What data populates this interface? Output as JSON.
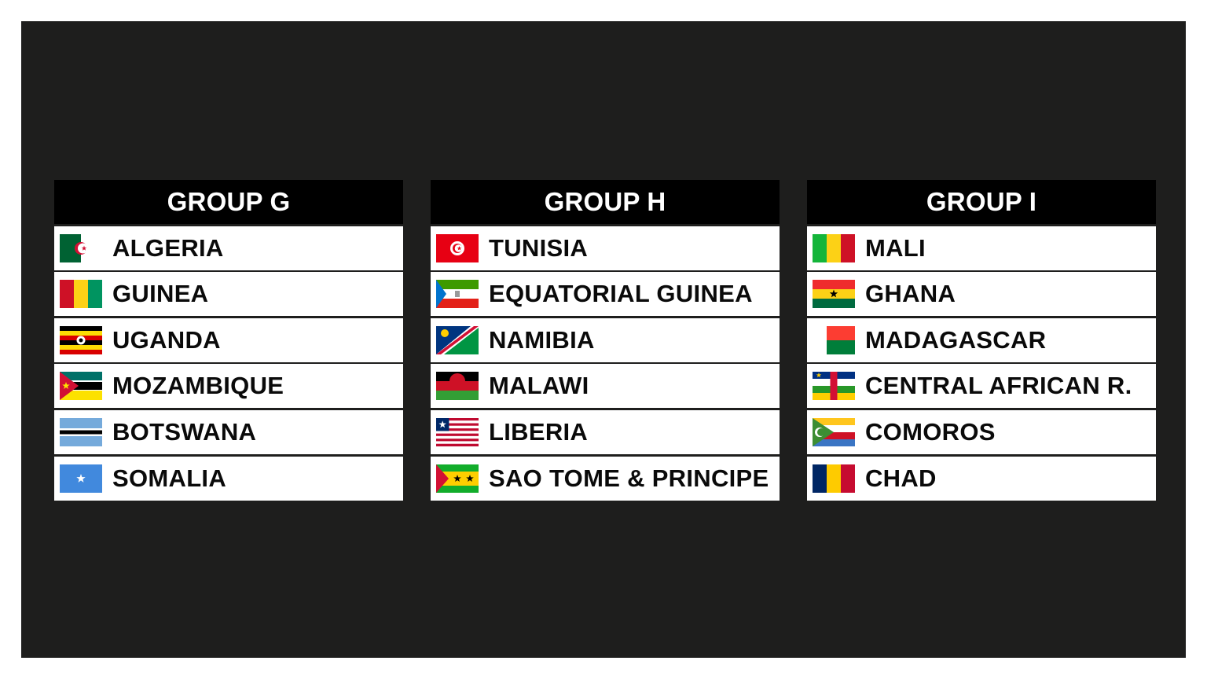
{
  "groups": [
    {
      "title": "GROUP G",
      "teams": [
        {
          "name": "ALGERIA",
          "flag": "algeria"
        },
        {
          "name": "GUINEA",
          "flag": "guinea"
        },
        {
          "name": "UGANDA",
          "flag": "uganda"
        },
        {
          "name": "MOZAMBIQUE",
          "flag": "mozambique"
        },
        {
          "name": "BOTSWANA",
          "flag": "botswana"
        },
        {
          "name": "SOMALIA",
          "flag": "somalia"
        }
      ]
    },
    {
      "title": "GROUP H",
      "teams": [
        {
          "name": "TUNISIA",
          "flag": "tunisia"
        },
        {
          "name": "EQUATORIAL GUINEA",
          "flag": "equatorial-guinea"
        },
        {
          "name": "NAMIBIA",
          "flag": "namibia"
        },
        {
          "name": "MALAWI",
          "flag": "malawi"
        },
        {
          "name": "LIBERIA",
          "flag": "liberia"
        },
        {
          "name": "SAO TOME & PRINCIPE",
          "flag": "sao-tome"
        }
      ]
    },
    {
      "title": "GROUP I",
      "teams": [
        {
          "name": "MALI",
          "flag": "mali"
        },
        {
          "name": "GHANA",
          "flag": "ghana"
        },
        {
          "name": "MADAGASCAR",
          "flag": "madagascar"
        },
        {
          "name": "CENTRAL AFRICAN R.",
          "flag": "central-african-republic"
        },
        {
          "name": "COMOROS",
          "flag": "comoros"
        },
        {
          "name": "CHAD",
          "flag": "chad"
        }
      ]
    }
  ],
  "colors": {
    "background": "#1e1e1d",
    "header": "#000000",
    "row": "#ffffff"
  }
}
